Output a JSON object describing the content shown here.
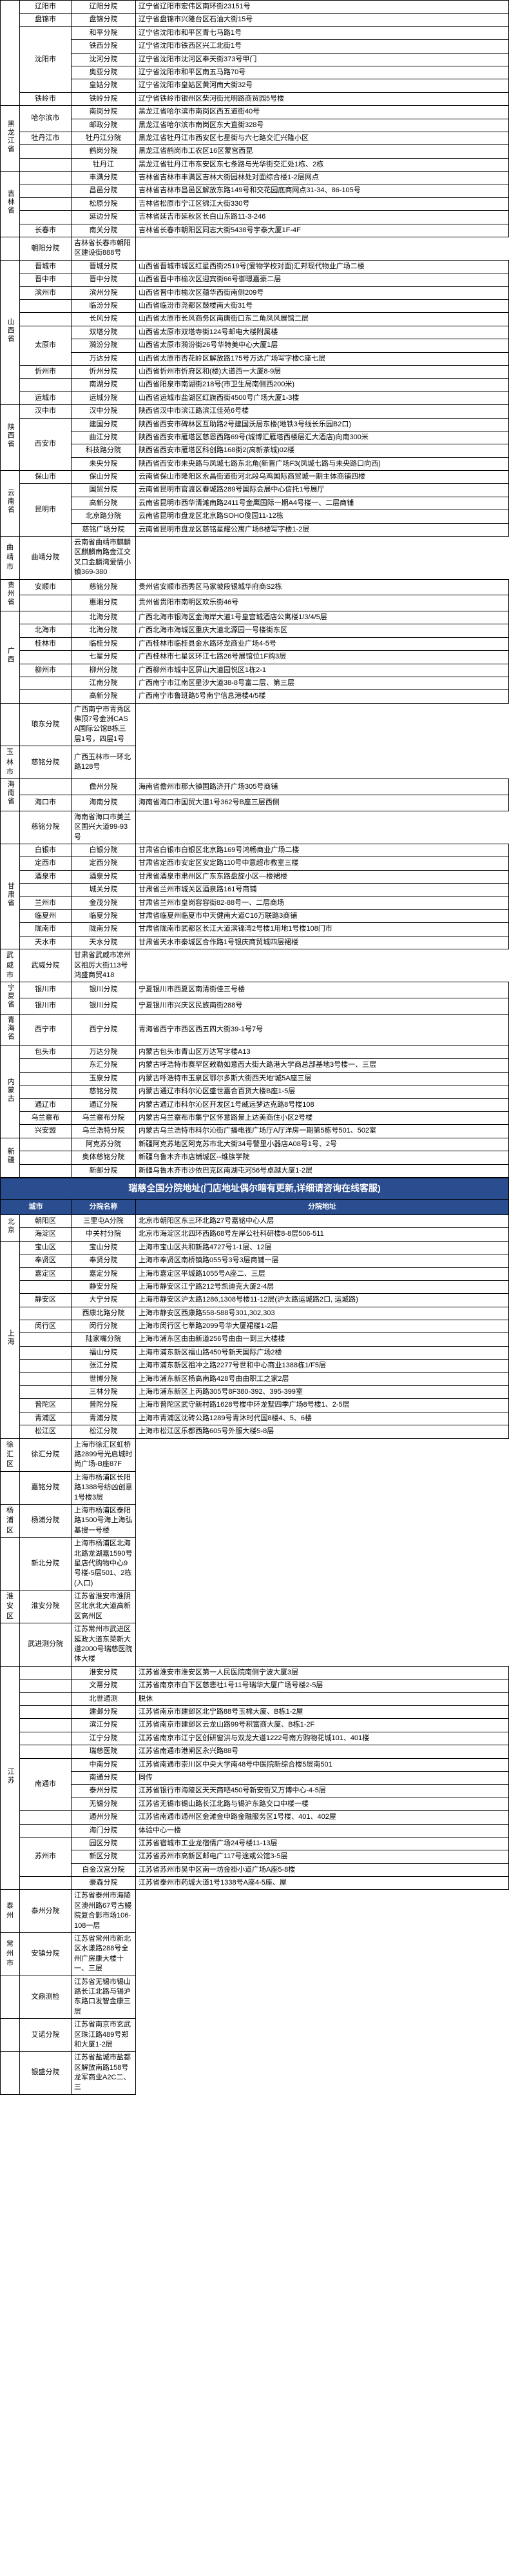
{
  "styling": {
    "header_bg": "#2a4d8f",
    "header_fg": "#ffffff",
    "border_color": "#000000",
    "body_bg": "#ffffff",
    "font_family": "Microsoft YaHei",
    "base_font_size": 11,
    "title_font_size": 14,
    "col_widths": {
      "province": 30,
      "city": 80,
      "branch": 100,
      "address": "auto"
    }
  },
  "table1": {
    "rows": [
      {
        "prov": "",
        "prov_span": 0,
        "city": "辽阳市",
        "city_span": 1,
        "branch": "辽阳分院",
        "addr": "辽宁省辽阳市宏伟区南环街23151号"
      },
      {
        "city": "盘锦市",
        "city_span": 1,
        "branch": "盘锦分院",
        "addr": "辽宁省盘锦市兴隆台区石油大街15号"
      },
      {
        "city": "沈阳市",
        "city_span": 5,
        "branch": "和平分院",
        "addr": "辽宁省沈阳市和平区青七马路1号"
      },
      {
        "branch": "铁西分院",
        "addr": "辽宁省沈阳市铁西区兴工北街1号"
      },
      {
        "branch": "沈河分院",
        "addr": "辽宁省沈阳市沈河区奉天街373号甲门"
      },
      {
        "branch": "奥亚分院",
        "addr": "辽宁省沈阳市和平区南五马路70号"
      },
      {
        "branch": "皇姑分院",
        "addr": "辽宁省沈阳市皇姑区黄河南大街32号"
      },
      {
        "city": "铁岭市",
        "city_span": 1,
        "branch": "铁岭分院",
        "addr": "辽宁省铁岭市银州区柴河街光明路商贸园5号楼"
      },
      {
        "prov": "黑龙江省",
        "prov_span": 5,
        "city": "哈尔滨市",
        "city_span": 2,
        "branch": "南岗分院",
        "addr": "黑龙江省哈尔滨市南岗区西五道街40号"
      },
      {
        "branch": "邮政分院",
        "addr": "黑龙江省哈尔滨市南岗区东大直街328号"
      },
      {
        "city": "牡丹江市",
        "city_span": 1,
        "branch": "牡丹江分院",
        "addr": "黑龙江省牡丹江市西安区七星街与六七路交汇兴隆小区"
      },
      {
        "city": "",
        "city_span": 0,
        "branch": "鹤岗分院",
        "addr": "黑龙江省鹤岗市工农区16区蒙宫西昆"
      },
      {
        "city": "",
        "city_span": 0,
        "branch": "牡丹江",
        "addr": "黑龙江省牡丹江市东安区东七条路与光华街交汇处1栋、2栋"
      },
      {
        "prov": "吉林省",
        "prov_span": 5,
        "city": "",
        "city_span": 0,
        "branch": "丰满分院",
        "addr": "吉林省吉林市丰满区吉林大街园林处对面综合楼1-2层网点"
      },
      {
        "city": "",
        "city_span": 0,
        "branch": "昌邑分院",
        "addr": "吉林省吉林市昌邑区解放东路149号和交花园底商网点31-34、86-105号"
      },
      {
        "city": "",
        "city_span": 0,
        "branch": "松原分院",
        "addr": "吉林省松原市宁江区锦江大街330号"
      },
      {
        "city": "",
        "city_span": 0,
        "branch": "延边分院",
        "addr": "吉林省延吉市延秋区长白山东路11-3-246"
      },
      {
        "city": "长春市",
        "city_span": 1,
        "branch": "南关分院",
        "addr": "吉林省长春市朝阳区同志大街5438号宇泰大厦1F-4F"
      },
      {
        "city": "",
        "city_span": 0,
        "branch": "朝阳分院",
        "addr": "吉林省长春市朝阳区建设街888号"
      },
      {
        "prov": "山西省",
        "prov_span": 11,
        "city": "晋城市",
        "city_span": 1,
        "branch": "晋城分院",
        "addr": "山西省晋城市城区红星西街2519号(爱物学校对面)汇邦现代物业广场二楼"
      },
      {
        "city": "晋中市",
        "city_span": 1,
        "branch": "晋中分院",
        "addr": "山西省晋中市榆次区迎宾街66号御璟嘉豪二层"
      },
      {
        "city": "滨州市",
        "city_span": 1,
        "branch": "滨州分院",
        "addr": "山西省晋中市榆次区蕴华西街南侧209号"
      },
      {
        "city": "",
        "city_span": 0,
        "branch": "临汾分院",
        "addr": "山西省临汾市尧都区鼓楼南大街31号"
      },
      {
        "city": "",
        "city_span": 0,
        "branch": "长风分院",
        "addr": "山西省太原市长风商务区南唐街口东二角凤风展馆二层"
      },
      {
        "city": "太原市",
        "city_span": 3,
        "branch": "双塔分院",
        "addr": "山西省太原市双塔寺街124号邮电大楼附属楼"
      },
      {
        "branch": "漪汾分院",
        "addr": "山西省太原市漪汾街26号华特美中心大厦1层"
      },
      {
        "branch": "万达分院",
        "addr": "山西省太原市杏花岭区解放路175号万达广场写字楼C座七层"
      },
      {
        "city": "忻州市",
        "city_span": 1,
        "branch": "忻州分院",
        "addr": "山西省忻州市忻府区和(楼)大道西一大厦8-9层"
      },
      {
        "city": "",
        "city_span": 0,
        "branch": "南湖分院",
        "addr": "山西省阳泉市南湖街218号(市卫生局南侧西200米)"
      },
      {
        "city": "运城市",
        "city_span": 1,
        "branch": "运城分院",
        "addr": "山西省运城市盐湖区红旗西街4500号广场大厦1-3楼"
      },
      {
        "prov": "陕西省",
        "prov_span": 5,
        "city": "汉中市",
        "city_span": 1,
        "branch": "汉中分院",
        "addr": "陕西省汉中市滨江路滨江佳苑6号楼"
      },
      {
        "city": "西安市",
        "city_span": 4,
        "branch": "建国分院",
        "addr": "陕西省西安市碑林区互助路2号建国沃居东楼(地铁3号线长乐园B2口)"
      },
      {
        "branch": "曲江分院",
        "addr": "陕西省西安市雁塔区慈恩西路69号(城博汇雁塔西楼层汇大酒店)向南300米"
      },
      {
        "branch": "科技路分院",
        "addr": "陕西省西安市雁塔区科创路168街2(高新茶城)02楼"
      },
      {
        "branch": "未央分院",
        "addr": "陕西省西安市未央路与凤城七路东北角(新晋广场F3(凤城七路与未央路口向西)"
      },
      {
        "prov": "云南省",
        "prov_span": 5,
        "city": "保山市",
        "city_span": 1,
        "branch": "保山分院",
        "addr": "云南省保山市隆阳区永昌街道街河北段乌鸡国际商贸城一期主体商铺四楼"
      },
      {
        "city": "昆明市",
        "city_span": 4,
        "branch": "国贸分院",
        "addr": "云南省昆明市官渡区春城路289号国际会展中心信托1号展厅"
      },
      {
        "branch": "高新分院",
        "addr": "云南省昆明市西华清滩南路2411号金鹰国际一期A4号楼一、二层商铺"
      },
      {
        "branch": "北京路分院",
        "addr": "云南省昆明市盘龙区北京路SOHO俊园11-12栋"
      },
      {
        "branch": "慈铭广场分院",
        "addr": "云南省昆明市盘龙区慈铭星耀公寓广场B楼写字楼1-2层"
      },
      {
        "city": "曲靖市",
        "city_span": 1,
        "branch": "曲靖分院",
        "addr": "云南省曲靖市麒麟区麒麟南路金江交叉口金麟湾爱情小镇369-380"
      },
      {
        "prov": "贵州省",
        "prov_span": 2,
        "city": "安顺市",
        "city_span": 1,
        "branch": "慈铭分院",
        "addr": "贵州省安顺市西秀区马家坡段银城华府商S2栋"
      },
      {
        "city": "",
        "city_span": 0,
        "branch": "惠湘分院",
        "addr": "贵州省贵阳市南明区欢乐街46号"
      },
      {
        "prov": "广西",
        "prov_span": 7,
        "city": "",
        "city_span": 0,
        "branch": "北海分院",
        "addr": "广西北海市银海区金海岸大道1号皇宫城酒店公寓楼1/3/4/5层"
      },
      {
        "city": "北海市",
        "city_span": 1,
        "branch": "北海分院",
        "addr": "广西北海市海城区重庆大道北源园一号楼街东区"
      },
      {
        "city": "桂林市",
        "city_span": 1,
        "branch": "临桂分院",
        "addr": "广西桂林市临桂县金水路环龙商业广场4-5号"
      },
      {
        "city": "",
        "city_span": 0,
        "branch": "七星分院",
        "addr": "广西桂林市七星区环江七路26号展馆位1F购3层"
      },
      {
        "city": "柳州市",
        "city_span": 1,
        "branch": "柳州分院",
        "addr": "广西柳州市城中区屏山大道园悦区1栋2-1"
      },
      {
        "city": "",
        "city_span": 0,
        "branch": "江南分院",
        "addr": "广西南宁市江南区星沙大道38-8号富二层、第三层"
      },
      {
        "city": "",
        "city_span": 0,
        "branch": "高新分院",
        "addr": "广西南宁市鲁班路5号南宁信息港楼4/5楼"
      },
      {
        "city": "",
        "city_span": 0,
        "branch": "琅东分院",
        "addr": "广西南宁市青秀区佛顶7号金洲CASA国际公馆B栋三层1号，四层1号"
      },
      {
        "city": "玉林市",
        "city_span": 1,
        "branch": "慈铭分院",
        "addr": "广西玉林市一环北路128号"
      },
      {
        "prov": "海南省",
        "prov_span": 2,
        "city": "",
        "city_span": 0,
        "branch": "儋州分院",
        "addr": "海南省儋州市那大镇国路济开广场305号商铺"
      },
      {
        "city": "海口市",
        "city_span": 1,
        "branch": "海南分院",
        "addr": "海南省海口市国贸大道1号362号B座三层西侧"
      },
      {
        "city": "",
        "city_span": 0,
        "branch": "慈铭分院",
        "addr": "海南省海口市美兰区国兴大道99-93号"
      },
      {
        "prov": "甘肃省",
        "prov_span": 8,
        "city": "白银市",
        "city_span": 1,
        "branch": "白银分院",
        "addr": "甘肃省白银市白银区北京路169号鸿畅商业广场二楼"
      },
      {
        "city": "定西市",
        "city_span": 1,
        "branch": "定西分院",
        "addr": "甘肃省定西市安定区安定路110号中意超市教室三楼"
      },
      {
        "city": "酒泉市",
        "city_span": 1,
        "branch": "酒泉分院",
        "addr": "甘肃省酒泉市肃州区广东东路盘旋小区—楼裙楼"
      },
      {
        "city": "",
        "city_span": 0,
        "branch": "城关分院",
        "addr": "甘肃省兰州市城关区酒泉路161号商铺"
      },
      {
        "city": "兰州市",
        "city_span": 1,
        "branch": "金茂分院",
        "addr": "甘肃省兰州市皇岗容容街82-88号一、二层商场"
      },
      {
        "city": "临夏州",
        "city_span": 1,
        "branch": "临夏分院",
        "addr": "甘肃省临夏州临夏市中天健南大道C16万联路3商铺"
      },
      {
        "city": "陇南市",
        "city_span": 1,
        "branch": "陇南分院",
        "addr": "甘肃省陇南市武都区长江大道滨锦湾2号楼1用地1号楼108门市"
      },
      {
        "city": "天水市",
        "city_span": 1,
        "branch": "天水分院",
        "addr": "甘肃省天水市秦城区合作路1号银庆商贸城四层裙楼"
      },
      {
        "city": "武威市",
        "city_span": 1,
        "branch": "武威分院",
        "addr": "甘肃省武威市凉州区祖厉大街113号鸿盛商贸418"
      },
      {
        "prov": "宁夏省",
        "prov_span": 2,
        "city": "银川市",
        "city_span": 1,
        "branch": "银川分院",
        "addr": "宁夏银川市西夏区南清街佳三号楼"
      },
      {
        "city": "银川市",
        "city_span": 1,
        "branch": "银川分院",
        "addr": "宁夏银川市兴庆区民族南街288号"
      },
      {
        "prov": "青海省",
        "prov_span": 1,
        "city": "西宁市",
        "city_span": 1,
        "branch": "西宁分院",
        "addr": "青海省西宁市西区西五四大街39-1号7号"
      },
      {
        "prov": "内蒙古",
        "prov_span": 7,
        "city": "包头市",
        "city_span": 1,
        "branch": "万达分院",
        "addr": "内蒙古包头市青山区万达写字楼A13"
      },
      {
        "city": "",
        "city_span": 0,
        "branch": "东汇分院",
        "addr": "内蒙古呼浩特市赛罕区敕勒如意西大街大路港大学商总部基地3号楼一、三层"
      },
      {
        "city": "",
        "city_span": 0,
        "branch": "玉泉分院",
        "addr": "内蒙古呼浩特市玉泉区鄂尔多斯大街西天地'城5A座三层"
      },
      {
        "city": "",
        "city_span": 0,
        "branch": "慈铭分院",
        "addr": "内蒙古通辽市科尔沁区盛世嘉合百货大楼B座1-5层"
      },
      {
        "city": "通辽市",
        "city_span": 1,
        "branch": "通辽分院",
        "addr": "内蒙古通辽市科尔沁区开发区1号威远梦达克路8号楼108"
      },
      {
        "city": "乌兰察布",
        "city_span": 1,
        "branch": "乌兰察布分院",
        "addr": "内蒙古乌兰察布市集宁区怀意路景上达美商住小区2号楼"
      },
      {
        "city": "兴安盟",
        "city_span": 1,
        "branch": "乌兰浩特分院",
        "addr": "内蒙古乌兰浩特市科尔沁街广播电视广场厅A厅洋房一期第5栋号501、502室"
      },
      {
        "prov": "新疆",
        "prov_span": 3,
        "city": "",
        "city_span": 0,
        "branch": "阿克苏分院",
        "addr": "新疆阿克苏地区阿克苏市北大街34号警里小器店A08号1号、2号"
      },
      {
        "city": "",
        "city_span": 0,
        "branch": "奥体慈铭分院",
        "addr": "新疆乌鲁木齐市店铺城区--维族学院"
      },
      {
        "city": "",
        "city_span": 0,
        "branch": "新邮分院",
        "addr": "新疆乌鲁木齐市沙依巴克区南湖屯河56号卓越大厦1-2层"
      }
    ]
  },
  "table2": {
    "title": "瑞慈全国分院地址(门店地址偶尔暗有更新,详细请咨询在线客服)",
    "headers": {
      "city": "城市",
      "branch": "分院名称",
      "addr": "分院地址"
    },
    "rows": [
      {
        "prov": "北京",
        "prov_span": 2,
        "city": "朝阳区",
        "city_span": 1,
        "branch": "三里屯A分院",
        "addr": "北京市朝阳区东三环北路27号嘉铭中心人层"
      },
      {
        "city": "海淀区",
        "city_span": 1,
        "branch": "中关村分院",
        "addr": "北京市海淀区北四环西路68号左岸公社科研楼8-8层506-511"
      },
      {
        "prov": "上海",
        "prov_span": 15,
        "city": "宝山区",
        "city_span": 1,
        "branch": "宝山分院",
        "addr": "上海市宝山区共和新路4727号1-1层、12层"
      },
      {
        "city": "奉贤区",
        "city_span": 1,
        "branch": "奉贤分院",
        "addr": "上海市奉贤区南桥镇路055号3号3层商铺一层"
      },
      {
        "city": "嘉定区",
        "city_span": 1,
        "branch": "嘉定分院",
        "addr": "上海市嘉定区平城路1055号A座二、三层"
      },
      {
        "city": "",
        "city_span": 0,
        "branch": "静安分院",
        "addr": "上海市静安区江宁路212号凯迪克大厦2-4层"
      },
      {
        "city": "静安区",
        "city_span": 1,
        "branch": "大宁分院",
        "addr": "上海市静安区沪太路1286,1308号楼11-12层(沪太路运城路2口, 运城路)"
      },
      {
        "city": "",
        "city_span": 0,
        "branch": "西康北路分院",
        "addr": "上海市静安区西康路558-588号301,302,303"
      },
      {
        "city": "闵行区",
        "city_span": 1,
        "branch": "闵行分院",
        "addr": "上海市闵行区七莘路2099号华大厦裙楼1-2层"
      },
      {
        "city": "",
        "city_span": 0,
        "branch": "陆家嘴分院",
        "addr": "上海市浦东区由由新道256号由由一到三大楼楼"
      },
      {
        "city": "",
        "city_span": 0,
        "branch": "福山分院",
        "addr": "上海市浦东新区福山路450号新天国际广场2楼"
      },
      {
        "city": "",
        "city_span": 0,
        "branch": "张江分院",
        "addr": "上海市浦东新区祖冲之路2277号世和中心商业1388栋1/F5层"
      },
      {
        "city": "",
        "city_span": 0,
        "branch": "世博分院",
        "addr": "上海市浦东新区杨高南路428号由由职工之家2层"
      },
      {
        "city": "",
        "city_span": 0,
        "branch": "三林分院",
        "addr": "上海市浦东新区上丙路305号8F380-392、395-399室"
      },
      {
        "city": "普陀区",
        "city_span": 1,
        "branch": "普陀分院",
        "addr": "上海市普陀区武守新村路1628号楼中环龙墅四季广场8号楼1、2-5层"
      },
      {
        "city": "青浦区",
        "city_span": 1,
        "branch": "青浦分院",
        "addr": "上海市青浦区沈砖公路1289号青沐时代国8楼4、5、6楼"
      },
      {
        "city": "松江区",
        "city_span": 1,
        "branch": "松江分院",
        "addr": "上海市松江区乐都西路605号外服大楼5-8层"
      },
      {
        "city": "徐汇区",
        "city_span": 1,
        "branch": "徐汇分院",
        "addr": "上海市徐汇区虹桥路2899号光启城时尚广场-B座87F"
      },
      {
        "city": "",
        "city_span": 0,
        "branch": "嘉铭分院",
        "addr": "上海市杨浦区长阳路1388号纺凶创意1号楼3层"
      },
      {
        "city": "杨浦区",
        "city_span": 1,
        "branch": "杨浦分院",
        "addr": "上海市杨浦区泰阳路1500号海上海弘基搜一号楼"
      },
      {
        "city": "",
        "city_span": 0,
        "branch": "新北分院",
        "addr": "上海市杨浦区北海北路龙湖嘉1590号星店代购物中心9号楼-5层501、2栋(入口)"
      },
      {
        "city": "淮安区",
        "city_span": 1,
        "branch": "淮安分院",
        "addr": "江苏省淮安市淮阴区北京北大道高新区高州区"
      },
      {
        "city": "",
        "city_span": 0,
        "branch": "武进测分院",
        "addr": "江苏常州市武进区延政大道东菜新大道2000号瑞慈医院体大楼"
      },
      {
        "prov": "江苏",
        "prov_span": 17,
        "city": "",
        "city_span": 0,
        "branch": "淮安分院",
        "addr": "江苏省淮安市淮安区第一人民医院南侧宁波大厦3层"
      },
      {
        "city": "",
        "city_span": 0,
        "branch": "文蒂分院",
        "addr": "江苏省南京市白下区慈悲社1号11号瑞华大厦广场号楼2-5层"
      },
      {
        "city": "",
        "city_span": 0,
        "branch": "北世通测",
        "addr": "脱休"
      },
      {
        "city": "",
        "city_span": 0,
        "branch": "建邺分院",
        "addr": "江苏省南京市建邺区北宁路88号玉棉大厦、B栋1-2屋"
      },
      {
        "city": "",
        "city_span": 0,
        "branch": "滨江分院",
        "addr": "江苏省南京市建邺区云龙山路99号积富商大厦、B栋1-2F"
      },
      {
        "city": "",
        "city_span": 0,
        "branch": "江宁分院",
        "addr": "江苏省南京市江宁区创研窗洪与双龙大道1222号南方购物花城101、401楼"
      },
      {
        "city": "",
        "city_span": 0,
        "branch": "瑞慈医院",
        "addr": "江苏省南通市港闸区永兴路88号"
      },
      {
        "city": "南通市",
        "city_span": 4,
        "branch": "中南分院",
        "addr": "江苏省南通市崇川区中央大学南48号中医院新综合楼5层南501"
      },
      {
        "branch": "南通分院",
        "addr": "同传"
      },
      {
        "branch": "泰州分院",
        "addr": "江苏省银行市海陵区天天商吧450号新安街又万博中心-4-5层"
      },
      {
        "branch": "无锡分院",
        "addr": "江苏省无锡市锡山路长江北路与锡沪东路交口中楼一楼"
      },
      {
        "city": "",
        "city_span": 0,
        "branch": "通州分院",
        "addr": "江苏省南通市通州区金滩金申路金融服务区1号楼、401、402屋"
      },
      {
        "city": "",
        "city_span": 0,
        "branch": "海门分院",
        "addr": "体验中心一楼"
      },
      {
        "city": "苏州市",
        "city_span": 3,
        "branch": "园区分院",
        "addr": "江苏省宿城市工业龙宿倩广场24号楼11-13层"
      },
      {
        "branch": "新区分院",
        "addr": "江苏省苏州市高新区邮电广117号途或公馆3-5层"
      },
      {
        "branch": "白金汉宫分院",
        "addr": "江苏省苏州市吴中区南一坊金褂小道广场A座5-8楼"
      },
      {
        "city": "",
        "city_span": 0,
        "branch": "豪森分院",
        "addr": "江苏省泰州市药城大道1号1338号A座4-5座、屋"
      },
      {
        "city": "泰州",
        "city_span": 1,
        "branch": "泰州分院",
        "addr": "江苏省泰州市海陵区澳州路67号古鳗院复合影市场106-108一层"
      },
      {
        "city": "常州市",
        "city_span": 1,
        "branch": "安镇分院",
        "addr": "江苏省常州市新北区水漾路288号全州广房康大楼十一、三层"
      },
      {
        "city": "",
        "city_span": 0,
        "branch": "文鼎测检",
        "addr": "江苏省无锡市锡山路长江北路与锡沪东路口发智金康三层"
      },
      {
        "city": "",
        "city_span": 0,
        "branch": "艾诺分院",
        "addr": "江苏省南京市玄武区珠江路489号郑和大厦1-2层"
      },
      {
        "city": "",
        "city_span": 0,
        "branch": "银盛分院",
        "addr": "江苏省盐城市盐都区解放南路158号龙军商业A2C二、三"
      }
    ]
  }
}
